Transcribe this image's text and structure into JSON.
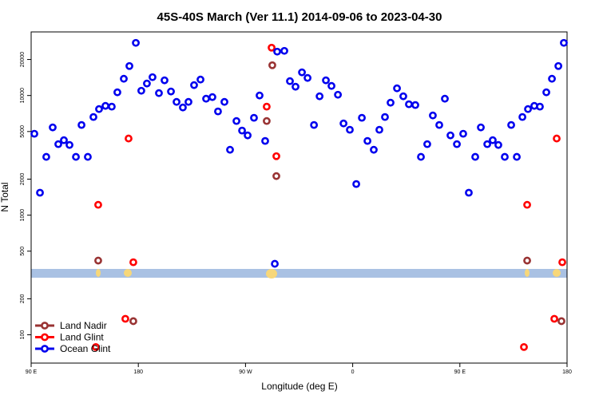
{
  "chart_data": {
    "type": "scatter",
    "title": "45S-40S March (Ver 11.1)   2014-09-06 to 2023-04-30",
    "xlabel": "Longitude (deg E)",
    "ylabel": "N Total",
    "log_y": true,
    "legend": "lower left",
    "xlim": [
      90,
      540
    ],
    "xticks": [
      {
        "value": 90,
        "label": "90 E"
      },
      180,
      {
        "value": 270,
        "label": "90 W"
      },
      {
        "value": 360,
        "label": "0"
      },
      {
        "value": 450,
        "label": "90 E"
      },
      {
        "value": 540,
        "label": "180"
      }
    ],
    "ylim": [
      58,
      34000
    ],
    "yticks": [
      100,
      200,
      500,
      1000,
      2000,
      5000,
      10000,
      20000
    ],
    "series": [
      {
        "name": "Land Nadir",
        "color": "#993333",
        "x": [
          146.3,
          292.5,
          287.8,
          295.9,
          175.8,
          506.5,
          535.3
        ],
        "values": [
          417,
          17900,
          6120,
          2120,
          130,
          417,
          130
        ]
      },
      {
        "name": "Land Glint",
        "color": "#ff0000",
        "x": [
          146.3,
          171.8,
          175.8,
          291.9,
          287.8,
          295.9,
          144.3,
          169.1,
          506.5,
          531.3,
          536.0,
          503.8,
          529.3
        ],
        "values": [
          1220,
          4370,
          404,
          25100,
          8070,
          3110,
          79,
          136,
          1220,
          4370,
          404,
          79,
          136
        ]
      },
      {
        "name": "Ocean Glint",
        "color": "#0000ee",
        "x": [
          92.7,
          97.4,
          102.7,
          108.1,
          112.8,
          117.5,
          122.2,
          127.6,
          132.3,
          137.6,
          142.3,
          147.0,
          152.4,
          157.7,
          162.4,
          167.8,
          172.5,
          177.9,
          182.5,
          187.2,
          191.9,
          197.3,
          202.0,
          207.4,
          212.1,
          217.4,
          222.1,
          226.8,
          232.2,
          236.9,
          242.2,
          246.9,
          252.3,
          257.0,
          262.4,
          267.1,
          271.8,
          277.1,
          281.8,
          286.5,
          294.6,
          296.6,
          302.6,
          307.3,
          312.0,
          317.4,
          322.1,
          327.5,
          332.2,
          337.5,
          342.2,
          347.6,
          352.3,
          357.6,
          363.0,
          367.7,
          372.4,
          377.7,
          382.4,
          387.1,
          391.8,
          397.2,
          402.5,
          407.2,
          412.6,
          417.3,
          422.6,
          427.3,
          432.7,
          437.4,
          442.1,
          447.5,
          452.8,
          457.5,
          462.9,
          467.6,
          473.0,
          477.6,
          482.3,
          487.7,
          493.1,
          497.8,
          502.5,
          507.2,
          512.5,
          517.2,
          522.6,
          527.3,
          532.7,
          537.3
        ],
        "values": [
          4790,
          1540,
          3070,
          5410,
          3920,
          4230,
          3860,
          3070,
          5670,
          3070,
          6610,
          7700,
          8190,
          8070,
          10630,
          13800,
          17640,
          27540,
          10960,
          12590,
          14230,
          10470,
          13390,
          10800,
          8840,
          7940,
          8840,
          12210,
          13590,
          9400,
          9700,
          7360,
          8840,
          3520,
          6120,
          5090,
          4640,
          6510,
          10000,
          4170,
          392,
          23260,
          23620,
          13180,
          11840,
          15610,
          14020,
          5670,
          9850,
          13390,
          12020,
          10150,
          5840,
          5170,
          1820,
          6510,
          4170,
          3520,
          5170,
          6610,
          8710,
          11480,
          9850,
          8450,
          8320,
          3070,
          3920,
          6810,
          5670,
          9400,
          4640,
          3920,
          4790,
          1540,
          3070,
          5410,
          3920,
          4230,
          3860,
          3070,
          5670,
          3070,
          6610,
          7700,
          8190,
          8070,
          10630,
          13800,
          17640,
          27540
        ]
      }
    ]
  }
}
